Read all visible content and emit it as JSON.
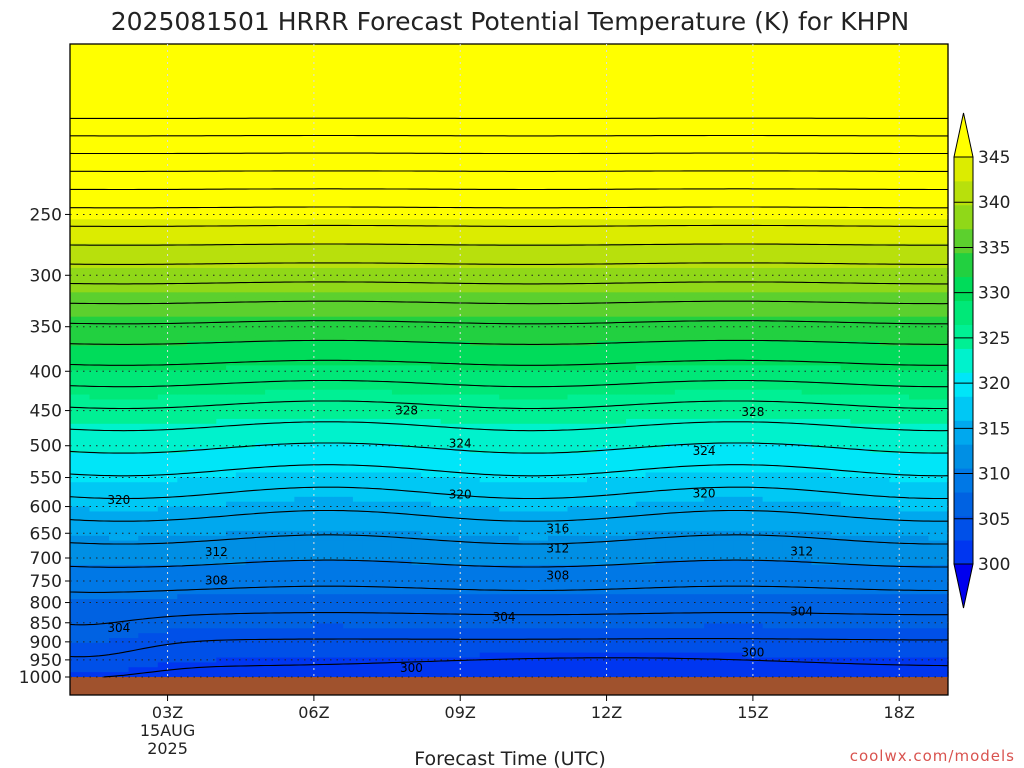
{
  "chart_data": {
    "type": "heatmap",
    "title": "2025081501 HRRR Forecast Potential Temperature (K) for KHPN",
    "xlabel": "Forecast Time (UTC)",
    "ylabel": "",
    "y_axis": {
      "label_values": [
        250,
        300,
        350,
        400,
        450,
        500,
        550,
        600,
        650,
        700,
        750,
        800,
        850,
        900,
        950,
        1000
      ],
      "range": [
        1000,
        150
      ],
      "scale": "log-pressure"
    },
    "x_axis": {
      "ticks": [
        {
          "label": "03Z",
          "hour": 3,
          "sub1": "15AUG",
          "sub2": "2025"
        },
        {
          "label": "06Z",
          "hour": 6,
          "sub1": "",
          "sub2": ""
        },
        {
          "label": "09Z",
          "hour": 9,
          "sub1": "",
          "sub2": ""
        },
        {
          "label": "12Z",
          "hour": 12,
          "sub1": "",
          "sub2": ""
        },
        {
          "label": "15Z",
          "hour": 15,
          "sub1": "",
          "sub2": ""
        },
        {
          "label": "18Z",
          "hour": 18,
          "sub1": "",
          "sub2": ""
        }
      ],
      "range": [
        1,
        19
      ]
    },
    "colorbar": {
      "labels": [
        "300",
        "305",
        "310",
        "315",
        "320",
        "325",
        "330",
        "335",
        "340",
        "345"
      ],
      "levels": [
        300,
        302.5,
        305,
        307.5,
        310,
        312.5,
        315,
        317.5,
        320,
        322.5,
        325,
        327.5,
        330,
        332.5,
        335,
        337.5,
        340,
        342.5,
        345
      ],
      "colors": [
        "#0000ee",
        "#0036f0",
        "#0050e8",
        "#0062e2",
        "#0078e6",
        "#008fe4",
        "#00a8ee",
        "#00c8f4",
        "#00e6f8",
        "#00f2cc",
        "#00f094",
        "#00e878",
        "#00dc5a",
        "#22d040",
        "#5cd02e",
        "#90d818",
        "#b8e00c",
        "#dcec00",
        "#ffff00"
      ]
    },
    "contour_labels": [
      {
        "text": "328",
        "hour": 7.9,
        "p": 450
      },
      {
        "text": "328",
        "hour": 15.0,
        "p": 452
      },
      {
        "text": "324",
        "hour": 9.0,
        "p": 497
      },
      {
        "text": "324",
        "hour": 14.0,
        "p": 508
      },
      {
        "text": "320",
        "hour": 2.0,
        "p": 588
      },
      {
        "text": "320",
        "hour": 9.0,
        "p": 579
      },
      {
        "text": "320",
        "hour": 14.0,
        "p": 577
      },
      {
        "text": "316",
        "hour": 11.0,
        "p": 641
      },
      {
        "text": "312",
        "hour": 4.0,
        "p": 688
      },
      {
        "text": "312",
        "hour": 11.0,
        "p": 680
      },
      {
        "text": "312",
        "hour": 16.0,
        "p": 687
      },
      {
        "text": "308",
        "hour": 4.0,
        "p": 749
      },
      {
        "text": "308",
        "hour": 11.0,
        "p": 738
      },
      {
        "text": "304",
        "hour": 2.0,
        "p": 864
      },
      {
        "text": "304",
        "hour": 9.9,
        "p": 835
      },
      {
        "text": "304",
        "hour": 16.0,
        "p": 822
      },
      {
        "text": "300",
        "hour": 8.0,
        "p": 974
      },
      {
        "text": "300",
        "hour": 15.0,
        "p": 929
      }
    ],
    "credit": "coolwx.com/models"
  }
}
